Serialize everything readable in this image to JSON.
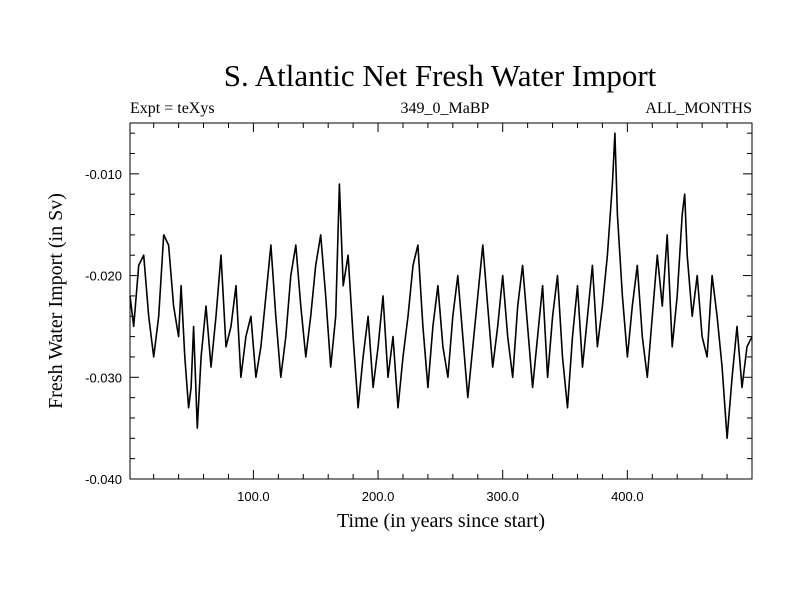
{
  "chart_data": {
    "type": "line",
    "title": "S. Atlantic Net Fresh Water Import",
    "subtitle_left": "Expt = teXys",
    "subtitle_center": "349_0_MaBP",
    "subtitle_right": "ALL_MONTHS",
    "xlabel": "Time (in years since start)",
    "ylabel": "Fresh Water Import (in Sv)",
    "xlim": [
      1,
      500
    ],
    "ylim": [
      -0.04,
      -0.005
    ],
    "xticks": [
      100,
      200,
      300,
      400
    ],
    "xtick_labels": [
      "100.0",
      "200.0",
      "300.0",
      "400.0"
    ],
    "yticks": [
      -0.01,
      -0.02,
      -0.03,
      -0.04
    ],
    "ytick_labels": [
      "-0.010",
      "-0.020",
      "-0.030",
      "-0.040"
    ],
    "grid": false,
    "series": [
      {
        "color": "#000000",
        "x": [
          1,
          4,
          8,
          12,
          16,
          20,
          24,
          28,
          32,
          36,
          40,
          42,
          45,
          48,
          50,
          52,
          55,
          58,
          62,
          66,
          70,
          74,
          78,
          82,
          86,
          90,
          94,
          98,
          102,
          106,
          110,
          114,
          118,
          122,
          126,
          130,
          134,
          138,
          142,
          146,
          150,
          154,
          158,
          162,
          166,
          169,
          172,
          176,
          180,
          184,
          188,
          192,
          196,
          200,
          204,
          208,
          212,
          216,
          220,
          224,
          228,
          232,
          236,
          240,
          244,
          248,
          252,
          256,
          260,
          264,
          268,
          272,
          276,
          280,
          284,
          288,
          292,
          296,
          300,
          304,
          308,
          312,
          316,
          320,
          324,
          328,
          332,
          336,
          340,
          344,
          348,
          352,
          356,
          360,
          364,
          368,
          372,
          376,
          380,
          384,
          388,
          390,
          392,
          396,
          400,
          404,
          408,
          412,
          416,
          420,
          424,
          428,
          432,
          436,
          440,
          444,
          446,
          448,
          452,
          456,
          460,
          464,
          468,
          472,
          476,
          480,
          484,
          488,
          492,
          496,
          500
        ],
        "y": [
          -0.022,
          -0.025,
          -0.019,
          -0.018,
          -0.024,
          -0.028,
          -0.024,
          -0.016,
          -0.017,
          -0.023,
          -0.026,
          -0.021,
          -0.028,
          -0.033,
          -0.031,
          -0.025,
          -0.035,
          -0.028,
          -0.023,
          -0.029,
          -0.024,
          -0.018,
          -0.027,
          -0.025,
          -0.021,
          -0.03,
          -0.026,
          -0.024,
          -0.03,
          -0.027,
          -0.022,
          -0.017,
          -0.024,
          -0.03,
          -0.026,
          -0.02,
          -0.017,
          -0.023,
          -0.028,
          -0.024,
          -0.019,
          -0.016,
          -0.022,
          -0.029,
          -0.024,
          -0.011,
          -0.021,
          -0.018,
          -0.026,
          -0.033,
          -0.028,
          -0.024,
          -0.031,
          -0.027,
          -0.022,
          -0.03,
          -0.026,
          -0.033,
          -0.028,
          -0.024,
          -0.019,
          -0.017,
          -0.025,
          -0.031,
          -0.025,
          -0.021,
          -0.027,
          -0.03,
          -0.024,
          -0.02,
          -0.026,
          -0.032,
          -0.027,
          -0.022,
          -0.017,
          -0.023,
          -0.029,
          -0.025,
          -0.02,
          -0.026,
          -0.03,
          -0.023,
          -0.019,
          -0.025,
          -0.031,
          -0.026,
          -0.021,
          -0.03,
          -0.024,
          -0.02,
          -0.028,
          -0.033,
          -0.026,
          -0.021,
          -0.029,
          -0.024,
          -0.019,
          -0.027,
          -0.023,
          -0.018,
          -0.011,
          -0.006,
          -0.014,
          -0.022,
          -0.028,
          -0.023,
          -0.019,
          -0.026,
          -0.03,
          -0.024,
          -0.018,
          -0.023,
          -0.016,
          -0.027,
          -0.022,
          -0.014,
          -0.012,
          -0.018,
          -0.024,
          -0.02,
          -0.026,
          -0.028,
          -0.02,
          -0.024,
          -0.029,
          -0.036,
          -0.03,
          -0.025,
          -0.031,
          -0.027,
          -0.026
        ]
      }
    ]
  }
}
